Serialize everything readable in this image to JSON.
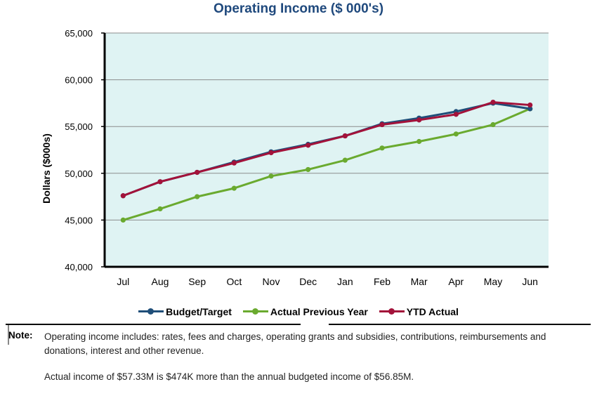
{
  "chart_data": {
    "type": "line",
    "title": "Operating Income ($ 000's)",
    "ylabel": "Dollars ($000s)",
    "xlabel": "",
    "ylim": [
      40000,
      65000
    ],
    "y_ticks": [
      "40,000",
      "45,000",
      "50,000",
      "55,000",
      "60,000",
      "65,000"
    ],
    "y_tick_values": [
      40000,
      45000,
      50000,
      55000,
      60000,
      65000
    ],
    "grid": true,
    "legend_position": "bottom",
    "categories": [
      "Jul",
      "Aug",
      "Sep",
      "Oct",
      "Nov",
      "Dec",
      "Jan",
      "Feb",
      "Mar",
      "Apr",
      "May",
      "Jun"
    ],
    "series": [
      {
        "name": "Budget/Target",
        "color": "#1f4e79",
        "values": [
          47600,
          49100,
          50100,
          51200,
          52300,
          53100,
          54000,
          55300,
          55900,
          56600,
          57500,
          56900
        ]
      },
      {
        "name": "Actual Previous Year",
        "color": "#6aaa2f",
        "values": [
          45000,
          46200,
          47500,
          48400,
          49700,
          50400,
          51400,
          52700,
          53400,
          54200,
          55200,
          56900
        ]
      },
      {
        "name": "YTD Actual",
        "color": "#a3123a",
        "values": [
          47600,
          49100,
          50100,
          51100,
          52200,
          53000,
          54000,
          55200,
          55700,
          56300,
          57600,
          57300
        ]
      }
    ],
    "plot_background": "#dff3f3"
  },
  "note": {
    "label": "Note:",
    "paragraph1": "Operating income includes: rates, fees and charges, operating grants and subsidies, contributions, reimbursements and donations, interest and other revenue.",
    "paragraph2": "Actual income of $57.33M is $474K more than the annual budgeted income of $56.85M."
  }
}
